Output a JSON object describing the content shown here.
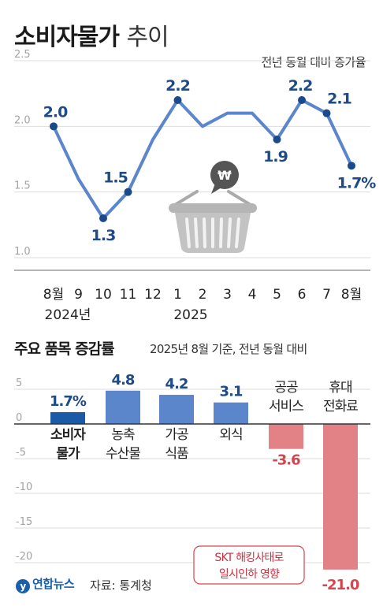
{
  "header": {
    "title": "소비자물가",
    "title_suffix": "추이",
    "unit_note": "전년 동월 대비 증가율"
  },
  "section2": {
    "title": "주요 품목 증감률",
    "subtitle": "2025년 8월 기준, 전년 동월 대비"
  },
  "footer": {
    "logo_text": "연합뉴스",
    "source": "자료: 통계청"
  },
  "annotation": {
    "line1": "SKT 해킹사태로",
    "line2": "일시인하 영향"
  },
  "colors": {
    "line": "#5b86cc",
    "point": "#1a4a8c",
    "label": "#1e4a86",
    "bar_blue": "#5b86cc",
    "bar_dark": "#1b5aa6",
    "bar_red": "#e28286",
    "neg_label": "#d9434e",
    "axis_text": "#a3a3a3",
    "grid": "#dddddd"
  },
  "icon": "shopping-basket-won-icon",
  "chart_data": [
    {
      "type": "line",
      "x_labels": [
        "8월",
        "9",
        "10",
        "11",
        "12",
        "1",
        "2",
        "3",
        "4",
        "5",
        "6",
        "7",
        "8월"
      ],
      "year_labels": [
        "2024년",
        "2025"
      ],
      "y_ticks": [
        "2.5",
        "2.0",
        "1.5",
        "1.0"
      ],
      "ylim": [
        1.0,
        2.5
      ],
      "series": [
        {
          "values": [
            2.0,
            1.6,
            1.3,
            1.5,
            1.9,
            2.2,
            2.0,
            2.1,
            2.1,
            1.9,
            2.2,
            2.1,
            1.7
          ]
        }
      ],
      "data_labels": [
        {
          "index": 0,
          "text": "2.0"
        },
        {
          "index": 2,
          "text": "1.3"
        },
        {
          "index": 3,
          "text": "1.5"
        },
        {
          "index": 5,
          "text": "2.2"
        },
        {
          "index": 9,
          "text": "1.9"
        },
        {
          "index": 10,
          "text": "2.2"
        },
        {
          "index": 11,
          "text": "2.1"
        },
        {
          "index": 12,
          "text": "1.7%"
        }
      ],
      "grid": true
    },
    {
      "type": "bar",
      "categories": [
        {
          "line1": "소비자",
          "line2": "물가"
        },
        {
          "line1": "농축",
          "line2": "수산물"
        },
        {
          "line1": "가공",
          "line2": "식품"
        },
        {
          "line1": "외식",
          "line2": ""
        },
        {
          "line1": "공공",
          "line2": "서비스"
        },
        {
          "line1": "휴대",
          "line2": "전화료"
        }
      ],
      "values": [
        1.7,
        4.8,
        4.2,
        3.1,
        -3.6,
        -21.0
      ],
      "value_labels": [
        "1.7%",
        "4.8",
        "4.2",
        "3.1",
        "-3.6",
        "-21.0"
      ],
      "y_ticks": [
        "5",
        "0",
        "-5",
        "-10",
        "-15",
        "-20"
      ],
      "ylim": [
        -22,
        5
      ],
      "grid": true
    }
  ]
}
